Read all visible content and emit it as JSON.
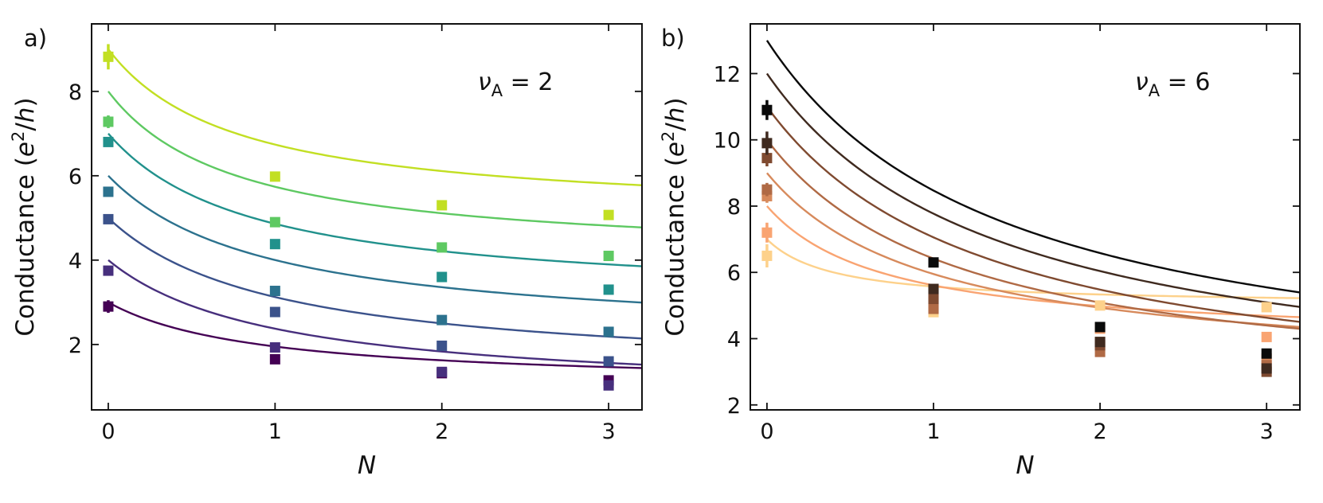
{
  "chart_data": [
    {
      "type": "scatter",
      "panel_label": "a)",
      "xlabel": "N",
      "ylabel": "Conductance (e²/h)",
      "ylabel_parts": {
        "pre": "Conductance (",
        "e": "e",
        "sup": "2",
        "slash": "/",
        "h": "h",
        "post": ")"
      },
      "annotation": {
        "symbol": "ν",
        "sub": "A",
        "rest": " = 2"
      },
      "xlim": [
        -0.1,
        3.2
      ],
      "ylim": [
        0.45,
        9.6
      ],
      "xticks": [
        0,
        1,
        2,
        3
      ],
      "yticks": [
        2,
        4,
        6,
        8
      ],
      "grid": false,
      "series": [
        {
          "name": "s1",
          "color": "#440154",
          "points": [
            [
              0,
              2.9,
              0.15
            ],
            [
              1,
              1.65,
              0.1
            ],
            [
              2,
              1.32,
              0.06
            ],
            [
              3,
              1.15,
              0.06
            ]
          ],
          "fit": {
            "g0": 3.0,
            "ginf": 1.0,
            "k": 1.1
          }
        },
        {
          "name": "s2",
          "color": "#472f7d",
          "points": [
            [
              0,
              3.75,
              0.1
            ],
            [
              1,
              1.93,
              0.08
            ],
            [
              2,
              1.35,
              0.06
            ],
            [
              3,
              1.03,
              0.06
            ]
          ],
          "fit": {
            "g0": 4.0,
            "ginf": 0.75,
            "k": 1.0
          }
        },
        {
          "name": "s3",
          "color": "#3b528b",
          "points": [
            [
              0,
              4.97,
              0.08
            ],
            [
              1,
              2.77,
              0.08
            ],
            [
              2,
              1.97,
              0.06
            ],
            [
              3,
              1.6,
              0.06
            ]
          ],
          "fit": {
            "g0": 5.0,
            "ginf": 1.25,
            "k": 1.0
          }
        },
        {
          "name": "s4",
          "color": "#2c728e",
          "points": [
            [
              0,
              5.62,
              0.08
            ],
            [
              1,
              3.27,
              0.06
            ],
            [
              2,
              2.58,
              0.06
            ],
            [
              3,
              2.3,
              0.06
            ]
          ],
          "fit": {
            "g0": 6.0,
            "ginf": 2.1,
            "k": 1.05
          }
        },
        {
          "name": "s5",
          "color": "#21918c",
          "points": [
            [
              0,
              6.8,
              0.08
            ],
            [
              1,
              4.38,
              0.06
            ],
            [
              2,
              3.6,
              0.06
            ],
            [
              3,
              3.3,
              0.06
            ]
          ],
          "fit": {
            "g0": 7.0,
            "ginf": 3.0,
            "k": 1.15
          }
        },
        {
          "name": "s6",
          "color": "#5ec962",
          "points": [
            [
              0,
              7.28,
              0.15
            ],
            [
              1,
              4.9,
              0.06
            ],
            [
              2,
              4.3,
              0.06
            ],
            [
              3,
              4.1,
              0.06
            ]
          ],
          "fit": {
            "g0": 8.0,
            "ginf": 4.0,
            "k": 1.3
          }
        },
        {
          "name": "s7",
          "color": "#c2df23",
          "points": [
            [
              0,
              8.82,
              0.3
            ],
            [
              1,
              5.98,
              0.06
            ],
            [
              2,
              5.3,
              0.06
            ],
            [
              3,
              5.07,
              0.06
            ]
          ],
          "fit": {
            "g0": 9.0,
            "ginf": 5.0,
            "k": 1.3
          }
        }
      ]
    },
    {
      "type": "scatter",
      "panel_label": "b)",
      "xlabel": "N",
      "ylabel": "Conductance (e²/h)",
      "ylabel_parts": {
        "pre": "Conductance (",
        "e": "e",
        "sup": "2",
        "slash": "/",
        "h": "h",
        "post": ")"
      },
      "annotation": {
        "symbol": "ν",
        "sub": "A",
        "rest": " = 6"
      },
      "xlim": [
        -0.1,
        3.2
      ],
      "ylim": [
        1.85,
        13.5
      ],
      "xticks": [
        0,
        1,
        2,
        3
      ],
      "yticks": [
        2,
        4,
        6,
        8,
        10,
        12
      ],
      "grid": false,
      "series": [
        {
          "name": "s1",
          "color": "#fdd18b",
          "points": [
            [
              0,
              6.5,
              0.35
            ],
            [
              1,
              4.8,
              0.15
            ],
            [
              2,
              5.0,
              0.1
            ],
            [
              3,
              4.95,
              0.1
            ]
          ],
          "fit": {
            "g0": 7.0,
            "ginf": 5.0,
            "k": 2.5
          }
        },
        {
          "name": "s2",
          "color": "#f9a472",
          "points": [
            [
              0,
              7.2,
              0.3
            ],
            [
              1,
              5.0,
              0.1
            ],
            [
              2,
              4.3,
              0.08
            ],
            [
              3,
              4.05,
              0.08
            ]
          ],
          "fit": {
            "g0": 8.0,
            "ginf": 3.9,
            "k": 1.4
          }
        },
        {
          "name": "s3",
          "color": "#d78a5c",
          "points": [
            [
              0,
              8.3,
              0.2
            ],
            [
              1,
              5.1,
              0.1
            ],
            [
              2,
              3.9,
              0.08
            ],
            [
              3,
              3.4,
              0.08
            ]
          ],
          "fit": {
            "g0": 9.0,
            "ginf": 2.9,
            "k": 1.0
          }
        },
        {
          "name": "s4",
          "color": "#b06a45",
          "points": [
            [
              0,
              8.5,
              0.2
            ],
            [
              1,
              4.9,
              0.1
            ],
            [
              2,
              3.6,
              0.08
            ],
            [
              3,
              3.2,
              0.08
            ]
          ],
          "fit": {
            "g0": 10.0,
            "ginf": 2.2,
            "k": 0.85
          }
        },
        {
          "name": "s5",
          "color": "#7f4a30",
          "points": [
            [
              0,
              9.45,
              0.25
            ],
            [
              1,
              5.2,
              0.1
            ],
            [
              2,
              3.8,
              0.08
            ],
            [
              3,
              3.0,
              0.08
            ]
          ],
          "fit": {
            "g0": 11.0,
            "ginf": 1.8,
            "k": 0.75
          }
        },
        {
          "name": "s6",
          "color": "#3f2a1f",
          "points": [
            [
              0,
              9.9,
              0.35
            ],
            [
              1,
              5.5,
              0.12
            ],
            [
              2,
              3.9,
              0.08
            ],
            [
              3,
              3.1,
              0.08
            ]
          ],
          "fit": {
            "g0": 12.0,
            "ginf": 1.9,
            "k": 0.72
          }
        },
        {
          "name": "s7",
          "color": "#0a0a0a",
          "points": [
            [
              0,
              10.9,
              0.3
            ],
            [
              1,
              6.3,
              0.1
            ],
            [
              2,
              4.35,
              0.08
            ],
            [
              3,
              3.55,
              0.1
            ]
          ],
          "fit": {
            "g0": 13.0,
            "ginf": 2.0,
            "k": 0.7
          }
        }
      ]
    }
  ]
}
